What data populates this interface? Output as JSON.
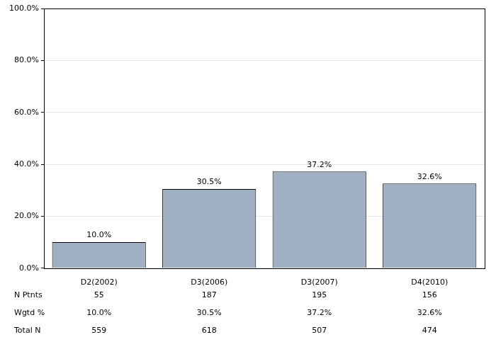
{
  "chart_data": {
    "type": "bar",
    "categories": [
      "D2(2002)",
      "D3(2006)",
      "D3(2007)",
      "D4(2010)"
    ],
    "values": [
      10.0,
      30.5,
      37.2,
      32.6
    ],
    "value_labels": [
      "10.0%",
      "30.5%",
      "37.2%",
      "32.6%"
    ],
    "data_labels": true,
    "color": "#9fb0c2",
    "ylim": [
      0,
      100
    ],
    "yticks": [
      {
        "value": 0,
        "label": "0.0%"
      },
      {
        "value": 20,
        "label": "20.0%"
      },
      {
        "value": 40,
        "label": "40.0%"
      },
      {
        "value": 60,
        "label": "60.0%"
      },
      {
        "value": 80,
        "label": "80.0%"
      },
      {
        "value": 100,
        "label": "100.0%"
      }
    ],
    "grid": true,
    "table": {
      "rows": [
        {
          "label": "N Ptnts",
          "values": [
            55,
            187,
            195,
            156
          ]
        },
        {
          "label": "Wgtd %",
          "values": [
            10.0,
            30.5,
            37.2,
            32.6
          ],
          "value_labels": [
            "10.0%",
            "30.5%",
            "37.2%",
            "32.6%"
          ]
        },
        {
          "label": "Total N",
          "values": [
            559,
            618,
            507,
            474
          ]
        }
      ]
    }
  }
}
